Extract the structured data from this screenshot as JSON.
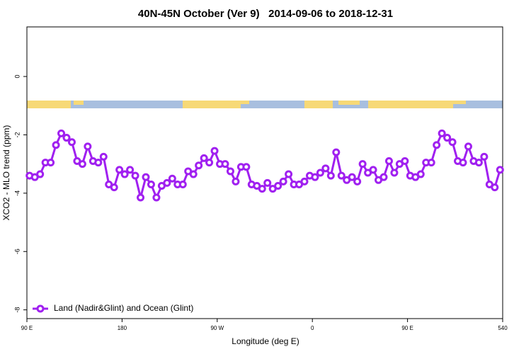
{
  "chart_data": {
    "type": "line",
    "title": "40N-45N October (Ver 9)   2014-09-06 to 2018-12-31",
    "x_label": "Longitude (deg E)",
    "y_label": "XCO2 - MLO trend (ppm)",
    "x": [
      92.5,
      97.5,
      102.5,
      107.5,
      112.5,
      117.5,
      122.5,
      127.5,
      132.5,
      137.5,
      142.5,
      147.5,
      152.5,
      157.5,
      162.5,
      167.5,
      172.5,
      177.5,
      182.5,
      187.5,
      192.5,
      197.5,
      202.5,
      207.5,
      212.5,
      217.5,
      222.5,
      227.5,
      232.5,
      237.5,
      242.5,
      247.5,
      252.5,
      257.5,
      262.5,
      267.5,
      272.5,
      277.5,
      282.5,
      287.5,
      292.5,
      297.5,
      302.5,
      307.5,
      312.5,
      317.5,
      322.5,
      327.5,
      332.5,
      337.5,
      342.5,
      347.5,
      352.5,
      357.5,
      362.5,
      367.5,
      372.5,
      377.5,
      382.5,
      387.5,
      392.5,
      397.5,
      402.5,
      407.5,
      412.5,
      417.5,
      422.5,
      427.5,
      432.5,
      437.5,
      442.5,
      447.5,
      452.5,
      457.5,
      462.5,
      467.5,
      472.5,
      477.5,
      482.5,
      487.5,
      492.5,
      497.5,
      502.5,
      507.5,
      512.5,
      517.5,
      522.5,
      527.5,
      532.5,
      537.5
    ],
    "series": [
      {
        "name": "Land (Nadir&Glint) and Ocean (Glint)",
        "color": "#a020f0",
        "values": [
          -3.4,
          -3.45,
          -3.35,
          -2.95,
          -2.95,
          -2.35,
          -1.95,
          -2.1,
          -2.25,
          -2.9,
          -3.0,
          -2.4,
          -2.9,
          -2.95,
          -2.75,
          -3.7,
          -3.8,
          -3.2,
          -3.35,
          -3.2,
          -3.4,
          -4.15,
          -3.45,
          -3.7,
          -4.15,
          -3.75,
          -3.65,
          -3.5,
          -3.7,
          -3.7,
          -3.25,
          -3.35,
          -3.05,
          -2.8,
          -2.95,
          -2.55,
          -3.0,
          -3.0,
          -3.25,
          -3.6,
          -3.1,
          -3.1,
          -3.7,
          -3.75,
          -3.85,
          -3.65,
          -3.85,
          -3.75,
          -3.6,
          -3.35,
          -3.7,
          -3.7,
          -3.6,
          -3.4,
          -3.45,
          -3.3,
          -3.15,
          -3.4,
          -2.6,
          -3.4,
          -3.55,
          -3.45,
          -3.6,
          -3.0,
          -3.3,
          -3.2,
          -3.55,
          -3.45,
          -2.9,
          -3.3,
          -3.0,
          -2.9,
          -3.4,
          -3.45,
          -3.35,
          -2.95,
          -2.95,
          -2.35,
          -1.95,
          -2.1,
          -2.25,
          -2.9,
          -2.95,
          -2.4,
          -2.9,
          -2.95,
          -2.75,
          -3.7,
          -3.8,
          -3.2
        ]
      }
    ],
    "xlim": [
      90,
      540
    ],
    "xticks": [
      {
        "value": 90,
        "label": "90 E"
      },
      180,
      {
        "value": 270,
        "label": "90 W"
      },
      {
        "value": 360,
        "label": "0"
      },
      {
        "value": 450,
        "label": "90 E"
      },
      540
    ],
    "ylim": [
      -8.3,
      1.7
    ],
    "yticks": [
      0,
      -2,
      -4,
      -6,
      -8
    ],
    "legend": "bottom-left"
  }
}
